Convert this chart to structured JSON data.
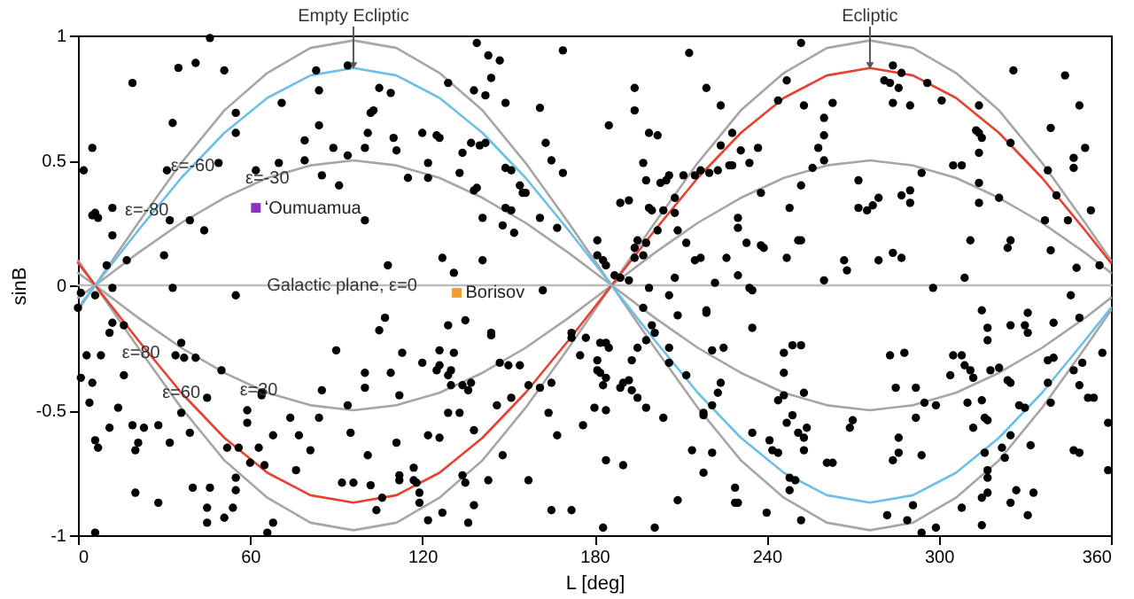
{
  "chart_data": {
    "type": "scatter",
    "xlabel": "L [deg]",
    "ylabel": "sinB",
    "xlim": [
      0,
      360
    ],
    "ylim": [
      -1,
      1
    ],
    "xticks": [
      0,
      60,
      120,
      180,
      240,
      300,
      360
    ],
    "yticks": [
      -1,
      -0.5,
      0,
      0.5,
      1
    ],
    "annotations": [
      {
        "text": "Empty Ecliptic",
        "x": 96,
        "y": 1
      },
      {
        "text": "Ecliptic",
        "x": 276,
        "y": 1
      },
      {
        "text": "ε=-80",
        "x": 24,
        "y": 0.3
      },
      {
        "text": "ε=-60",
        "x": 40,
        "y": 0.48
      },
      {
        "text": "ε=-30",
        "x": 66,
        "y": 0.43
      },
      {
        "text": "Galactic plane, ε=0",
        "x": 92,
        "y": 0
      },
      {
        "text": "ε=30",
        "x": 63,
        "y": -0.42
      },
      {
        "text": "ε=60",
        "x": 36,
        "y": -0.43
      },
      {
        "text": "ε=80",
        "x": 22,
        "y": -0.27
      }
    ],
    "series": [
      {
        "type": "line",
        "color": "#a6a6a6",
        "x": [
          0,
          6,
          21,
          36,
          51,
          66,
          81,
          96,
          111,
          126,
          141,
          156,
          171,
          186,
          201,
          216,
          231,
          246,
          261,
          276,
          291,
          306,
          321,
          336,
          351,
          360
        ],
        "values": [
          0.1,
          0,
          -0.25,
          -0.49,
          -0.7,
          -0.85,
          -0.95,
          -0.98,
          -0.95,
          -0.85,
          -0.7,
          -0.49,
          -0.25,
          0,
          0.25,
          0.49,
          0.7,
          0.85,
          0.95,
          0.98,
          0.95,
          0.85,
          0.7,
          0.49,
          0.25,
          0.1
        ]
      },
      {
        "type": "line",
        "color": "#a6a6a6",
        "x": [
          0,
          6,
          21,
          36,
          51,
          66,
          81,
          96,
          111,
          126,
          141,
          156,
          171,
          186,
          201,
          216,
          231,
          246,
          261,
          276,
          291,
          306,
          321,
          336,
          351,
          360
        ],
        "values": [
          -0.1,
          0,
          0.25,
          0.49,
          0.7,
          0.85,
          0.95,
          0.98,
          0.95,
          0.85,
          0.7,
          0.49,
          0.25,
          0,
          -0.25,
          -0.49,
          -0.7,
          -0.85,
          -0.95,
          -0.98,
          -0.95,
          -0.85,
          -0.7,
          -0.49,
          -0.25,
          -0.1
        ]
      },
      {
        "type": "line",
        "color": "#a6a6a6",
        "x": [
          0,
          6,
          21,
          36,
          51,
          66,
          81,
          96,
          111,
          126,
          141,
          156,
          171,
          186,
          201,
          216,
          231,
          246,
          261,
          276,
          291,
          306,
          321,
          336,
          351,
          360
        ],
        "values": [
          0.05,
          0,
          -0.13,
          -0.25,
          -0.35,
          -0.43,
          -0.48,
          -0.5,
          -0.48,
          -0.43,
          -0.35,
          -0.25,
          -0.13,
          0,
          0.13,
          0.25,
          0.35,
          0.43,
          0.48,
          0.5,
          0.48,
          0.43,
          0.35,
          0.25,
          0.13,
          0.05
        ]
      },
      {
        "type": "line",
        "color": "#a6a6a6",
        "x": [
          0,
          6,
          21,
          36,
          51,
          66,
          81,
          96,
          111,
          126,
          141,
          156,
          171,
          186,
          201,
          216,
          231,
          246,
          261,
          276,
          291,
          306,
          321,
          336,
          351,
          360
        ],
        "values": [
          -0.05,
          0,
          0.13,
          0.25,
          0.35,
          0.43,
          0.48,
          0.5,
          0.48,
          0.43,
          0.35,
          0.25,
          0.13,
          0,
          -0.13,
          -0.25,
          -0.35,
          -0.43,
          -0.48,
          -0.5,
          -0.48,
          -0.43,
          -0.35,
          -0.25,
          -0.13,
          -0.05
        ]
      },
      {
        "type": "line",
        "color": "#bdbdbd",
        "x": [
          0,
          360
        ],
        "values": [
          0,
          0
        ]
      },
      {
        "type": "line",
        "color": "#e8402f",
        "x": [
          0,
          6,
          21,
          36,
          51,
          66,
          81,
          96,
          111,
          126,
          141,
          156,
          171,
          186,
          201,
          216,
          231,
          246,
          261,
          276,
          291,
          306,
          321,
          336,
          351,
          360
        ],
        "values": [
          0.09,
          0,
          -0.22,
          -0.43,
          -0.61,
          -0.75,
          -0.84,
          -0.87,
          -0.84,
          -0.75,
          -0.61,
          -0.43,
          -0.22,
          0,
          0.22,
          0.43,
          0.61,
          0.75,
          0.84,
          0.87,
          0.84,
          0.75,
          0.61,
          0.43,
          0.22,
          0.09
        ]
      },
      {
        "type": "line",
        "color": "#6cc0e8",
        "x": [
          0,
          6,
          21,
          36,
          51,
          66,
          81,
          96,
          111,
          126,
          141,
          156,
          171,
          186,
          201,
          216,
          231,
          246,
          261,
          276,
          291,
          306,
          321,
          336,
          351,
          360
        ],
        "values": [
          -0.09,
          0,
          0.22,
          0.43,
          0.61,
          0.75,
          0.84,
          0.87,
          0.84,
          0.75,
          0.61,
          0.43,
          0.22,
          0,
          -0.22,
          -0.43,
          -0.61,
          -0.75,
          -0.84,
          -0.87,
          -0.84,
          -0.75,
          -0.61,
          -0.43,
          -0.22,
          -0.09
        ]
      },
      {
        "color": "#000000",
        "marker": "circle",
        "x": [
          46,
          19,
          35,
          41,
          51,
          5,
          2,
          33,
          31,
          5,
          6,
          7,
          12,
          12,
          10,
          17,
          30,
          32,
          39,
          44,
          49,
          55,
          55,
          62,
          70,
          71,
          79,
          79,
          83,
          84,
          84,
          85,
          89,
          91,
          94,
          94,
          100,
          100,
          101,
          102,
          103,
          105,
          109,
          110,
          111,
          115,
          120,
          122,
          122,
          108,
          33,
          12,
          139,
          143,
          147,
          169,
          129,
          144,
          138,
          142,
          149,
          161,
          125,
          126,
          137,
          140,
          142,
          134,
          163,
          165,
          149,
          151,
          133,
          169,
          138,
          139,
          154,
          155,
          156,
          149,
          151,
          161,
          141,
          148,
          152,
          167,
          127,
          131,
          141,
          181,
          181,
          183,
          184,
          185,
          194,
          194,
          199,
          202,
          197,
          198,
          203,
          205,
          206,
          211,
          213,
          219,
          224,
          228,
          224,
          231,
          234,
          237,
          227,
          228,
          217,
          220,
          223,
          215,
          238,
          189,
          192,
          199,
          200,
          204,
          208,
          208,
          202,
          209,
          212,
          198,
          195,
          194,
          194,
          197,
          217,
          215,
          226,
          230,
          230,
          233,
          238,
          230,
          222,
          234,
          208,
          199,
          187,
          189,
          192,
          252,
          247,
          244,
          253,
          263,
          260,
          260,
          258,
          260,
          256,
          252,
          248,
          239,
          247,
          251,
          252,
          260,
          267,
          268,
          272,
          272,
          275,
          277,
          279,
          279,
          284,
          287,
          284,
          287,
          281,
          283,
          286,
          284,
          290,
          296,
          301,
          287,
          290,
          290,
          294,
          298,
          309,
          305,
          308,
          311,
          314,
          313,
          314,
          315,
          314,
          314,
          314,
          321,
          324,
          325,
          325,
          326,
          339,
          338,
          341,
          337,
          339,
          344,
          349,
          347,
          347,
          351,
          345,
          353,
          348,
          356,
          0,
          1,
          6,
          3,
          1,
          5,
          4,
          8,
          11,
          12,
          16,
          16,
          14,
          11,
          6,
          7,
          6,
          19,
          21,
          20,
          23,
          20,
          28,
          28,
          32,
          34,
          36,
          37,
          41,
          36,
          39,
          40,
          45,
          45,
          45,
          46,
          50,
          52,
          56,
          55,
          55,
          54,
          51,
          59,
          59,
          60,
          63,
          65,
          68,
          68,
          66,
          64,
          64,
          55,
          74,
          77,
          76,
          81,
          84,
          85,
          90,
          94,
          95,
          92,
          96,
          101,
          102,
          100,
          100,
          104,
          106,
          105,
          107,
          109,
          112,
          113,
          120,
          122,
          111,
          112,
          112,
          117,
          117,
          118,
          119,
          119,
          122,
          162,
          129,
          135,
          126,
          131,
          125,
          126,
          130,
          129,
          130,
          134,
          136,
          137,
          144,
          144,
          147,
          150,
          154,
          157,
          161,
          165,
          146,
          151,
          129,
          133,
          138,
          126,
          148,
          143,
          134,
          135,
          127,
          136,
          138,
          157,
          165,
          172,
          164,
          167,
          172,
          172,
          177,
          175,
          182,
          184,
          185,
          181,
          182,
          181,
          183,
          184,
          180,
          184,
          176,
          193,
          195,
          198,
          189,
          190,
          192,
          193,
          195,
          198,
          204,
          197,
          200,
          201,
          206,
          209,
          206,
          206,
          212,
          218,
          218,
          221,
          223,
          224,
          221,
          225,
          219,
          219,
          235,
          235,
          235,
          214,
          221,
          218,
          229,
          229,
          230,
          209,
          201,
          183,
          184,
          190,
          240,
          246,
          249,
          252,
          246,
          244,
          246,
          253,
          247,
          249,
          251,
          253,
          254,
          241,
          242,
          244,
          253,
          248,
          250,
          248,
          252,
          261,
          263,
          269,
          270,
          283,
          288,
          285,
          292,
          292,
          295,
          299,
          286,
          286,
          284,
          294,
          291,
          289,
          282,
          294,
          299,
          305,
          308,
          309,
          304,
          311,
          312,
          310,
          312,
          315,
          317,
          317,
          318,
          321,
          315,
          316,
          317,
          316,
          317,
          317,
          315,
          315,
          308,
          317,
          322,
          323,
          325,
          324,
          325,
          325,
          330,
          331,
          331,
          328,
          330,
          332,
          327,
          325,
          333,
          331,
          340,
          338,
          340,
          338,
          339,
          347,
          350,
          346,
          349,
          349,
          352,
          354,
          347,
          349,
          359,
          359,
          357
        ],
        "values": [
          0.99,
          0.81,
          0.87,
          0.89,
          0.86,
          0.55,
          0.46,
          0.65,
          0.46,
          0.28,
          0.29,
          0.27,
          0.31,
          0.2,
          0.08,
          0.1,
          0.12,
          0.26,
          0.26,
          0.22,
          0.49,
          0.61,
          0.69,
          0.46,
          0.49,
          0.73,
          0.5,
          0.58,
          0.86,
          0.78,
          0.64,
          0.44,
          0.55,
          0.4,
          0.88,
          0.52,
          0.26,
          0.55,
          0.61,
          0.69,
          0.7,
          0.79,
          0.77,
          0.59,
          0.54,
          0.43,
          0.61,
          0.49,
          0.43,
          0.08,
          -0.01,
          -0.01,
          0.97,
          0.92,
          0.9,
          0.94,
          0.81,
          0.83,
          0.78,
          0.76,
          0.73,
          0.71,
          0.6,
          0.59,
          0.57,
          0.56,
          0.57,
          0.53,
          0.57,
          0.5,
          0.47,
          0.46,
          0.45,
          0.45,
          0.38,
          0.39,
          0.4,
          0.37,
          0.37,
          0.31,
          0.3,
          0.27,
          0.27,
          0.24,
          0.21,
          0.23,
          0.11,
          0.05,
          0.1,
          0.18,
          0.12,
          0.1,
          0.08,
          0.64,
          0.79,
          0.7,
          0.61,
          0.6,
          0.49,
          0.42,
          0.41,
          0.42,
          0.44,
          0.44,
          0.93,
          0.79,
          0.72,
          0.61,
          0.56,
          0.54,
          0.49,
          0.55,
          0.48,
          0.48,
          0.46,
          0.45,
          0.46,
          0.44,
          0.37,
          0.33,
          0.34,
          0.31,
          0.3,
          0.3,
          0.35,
          0.29,
          0.22,
          0.22,
          0.17,
          0.17,
          0.18,
          0.15,
          0.11,
          0.12,
          0.11,
          0.1,
          0.11,
          0.27,
          0.23,
          0.17,
          0.16,
          0.04,
          0.01,
          -0.01,
          0.03,
          -0.01,
          0.04,
          0.03,
          0.02,
          0.97,
          0.82,
          0.74,
          0.72,
          0.73,
          0.67,
          0.6,
          0.55,
          0.5,
          0.47,
          0.4,
          0.31,
          0.15,
          0.11,
          0.18,
          0.18,
          0.02,
          0.1,
          0.06,
          0.42,
          0.31,
          0.3,
          0.32,
          0.35,
          0.1,
          0.13,
          0.11,
          0.88,
          0.85,
          0.82,
          0.81,
          0.79,
          0.73,
          0.72,
          0.81,
          0.74,
          0.36,
          0.38,
          0.33,
          0.45,
          -0.01,
          0.03,
          0.48,
          0.48,
          0.18,
          0.72,
          0.62,
          0.61,
          0.59,
          0.53,
          0.41,
          0.33,
          0.35,
          0.15,
          0.18,
          0.57,
          0.86,
          0.63,
          0.46,
          0.36,
          0.26,
          0.14,
          0.84,
          0.72,
          0.51,
          0.47,
          0.55,
          0.26,
          0.3,
          0.07,
          0.08,
          -0.09,
          -0.03,
          -0.04,
          -0.28,
          -0.37,
          -0.39,
          -0.47,
          -0.28,
          -0.19,
          -0.15,
          -0.16,
          -0.36,
          -0.49,
          -0.57,
          -0.62,
          -0.65,
          -0.99,
          -0.56,
          -0.63,
          -0.66,
          -0.57,
          -0.83,
          -0.87,
          -0.56,
          -0.63,
          -0.28,
          -0.23,
          -0.29,
          -0.29,
          -0.51,
          -0.59,
          -0.81,
          -0.45,
          -0.89,
          -0.95,
          -0.81,
          -0.34,
          -0.65,
          -0.65,
          -0.77,
          -0.82,
          -0.89,
          -0.93,
          -0.5,
          -0.55,
          -0.71,
          -0.65,
          -0.72,
          -0.6,
          -0.95,
          -0.99,
          -0.43,
          -0.44,
          -0.04,
          -0.53,
          -0.6,
          -0.74,
          -0.66,
          -0.53,
          -0.42,
          -0.26,
          -0.48,
          -0.59,
          -0.79,
          -0.79,
          -0.68,
          -0.8,
          -0.41,
          -0.35,
          -0.9,
          -0.85,
          -0.18,
          -0.13,
          -0.35,
          -0.44,
          -0.27,
          -0.31,
          -0.6,
          -0.63,
          -0.76,
          -0.78,
          -0.73,
          -0.78,
          -0.79,
          -0.87,
          -0.83,
          -0.94,
          -0.02,
          -0.16,
          -0.14,
          -0.26,
          -0.27,
          -0.34,
          -0.32,
          -0.34,
          -0.36,
          -0.4,
          -0.4,
          -0.42,
          -0.39,
          -0.2,
          -0.19,
          -0.31,
          -0.32,
          -0.32,
          -0.4,
          -0.41,
          -0.39,
          -0.48,
          -0.45,
          -0.51,
          -0.51,
          -0.58,
          -0.61,
          -0.68,
          -0.78,
          -0.76,
          -0.79,
          -0.91,
          -0.95,
          -0.88,
          -0.78,
          -0.9,
          -0.9,
          -0.51,
          -0.6,
          -0.19,
          -0.21,
          -0.21,
          -0.28,
          -0.23,
          -0.23,
          -0.25,
          -0.34,
          -0.35,
          -0.3,
          -0.4,
          -0.37,
          -0.49,
          -0.5,
          -0.56,
          -0.3,
          -0.25,
          -0.22,
          -0.41,
          -0.39,
          -0.38,
          -0.42,
          -0.45,
          -0.49,
          -0.53,
          -0.09,
          -0.16,
          -0.19,
          -0.04,
          -0.12,
          -0.25,
          -0.31,
          -0.36,
          -0.51,
          -0.52,
          -0.48,
          -0.43,
          -0.39,
          -0.26,
          -0.25,
          -0.1,
          -0.11,
          -0.02,
          -0.17,
          -0.59,
          -0.66,
          -0.67,
          -0.75,
          -0.81,
          -0.87,
          -0.87,
          -0.86,
          -0.97,
          -0.97,
          -0.7,
          -0.72,
          -0.91,
          -0.27,
          -0.24,
          -0.24,
          -0.35,
          -0.46,
          -0.44,
          -0.43,
          -0.55,
          -0.52,
          -0.59,
          -0.61,
          -0.57,
          -0.62,
          -0.66,
          -0.67,
          -0.66,
          -0.77,
          -0.78,
          -0.82,
          -0.94,
          -0.71,
          -0.71,
          -0.57,
          -0.54,
          -0.28,
          -0.27,
          -0.41,
          -0.41,
          -0.53,
          -0.47,
          -0.48,
          -0.61,
          -0.67,
          -0.7,
          -0.68,
          -0.88,
          -0.94,
          -0.92,
          -0.99,
          -0.97,
          -0.28,
          -0.28,
          -0.32,
          -0.36,
          -0.34,
          -0.37,
          -0.47,
          -0.57,
          -0.1,
          -0.17,
          -0.22,
          -0.34,
          -0.33,
          -0.46,
          -0.53,
          -0.54,
          -0.67,
          -0.74,
          -0.77,
          -0.96,
          -0.85,
          -0.89,
          -0.83,
          -0.65,
          -0.69,
          -0.6,
          -0.38,
          -0.39,
          -0.16,
          -0.16,
          -0.19,
          -0.11,
          -0.48,
          -0.49,
          -0.64,
          -0.82,
          -0.87,
          -0.83,
          -0.92,
          -0.15,
          -0.3,
          -0.29,
          -0.39,
          -0.47,
          -0.34,
          -0.31,
          -0.04,
          -0.13,
          -0.4,
          -0.45,
          -0.45,
          -0.66,
          -0.67,
          -0.55,
          -0.74,
          -0.27
        ]
      },
      {
        "name": "ʻOumuamua",
        "color": "#9030c8",
        "marker": "square",
        "x": [
          62
        ],
        "values": [
          0.31
        ]
      },
      {
        "name": "Borisov",
        "color": "#f0a030",
        "marker": "square",
        "x": [
          132
        ],
        "values": [
          -0.03
        ]
      }
    ]
  }
}
